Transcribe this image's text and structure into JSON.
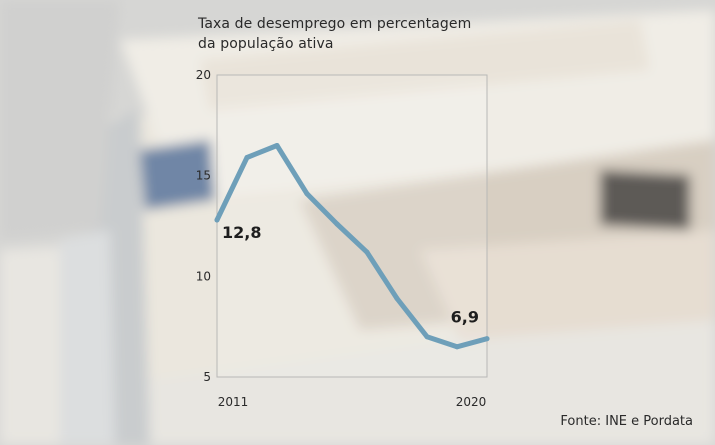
{
  "chart_data": {
    "type": "line",
    "title": "Taxa de desemprego em percentagem da população ativa",
    "title_lines": [
      "Taxa de desemprego em percentagem",
      "da população ativa"
    ],
    "x": [
      2011,
      2012,
      2013,
      2014,
      2015,
      2016,
      2017,
      2018,
      2019,
      2020
    ],
    "x_tick_labels": [
      "2011",
      "2020"
    ],
    "series": [
      {
        "values": [
          12.8,
          15.9,
          16.5,
          14.1,
          12.6,
          11.2,
          8.9,
          7.0,
          6.5,
          6.9
        ]
      }
    ],
    "data_labels": [
      {
        "index": 0,
        "text": "12,8"
      },
      {
        "index": 9,
        "text": "6,9"
      }
    ],
    "ylim": [
      5,
      20
    ],
    "y_ticks": [
      5,
      10,
      15,
      20
    ],
    "y_tick_labels": [
      "5",
      "10",
      "15",
      "20"
    ],
    "xlabel": "",
    "ylabel": "",
    "line_color": "#6e9fb9",
    "grid": false,
    "legend": "none"
  },
  "source": "Fonte: INE e Pordata"
}
